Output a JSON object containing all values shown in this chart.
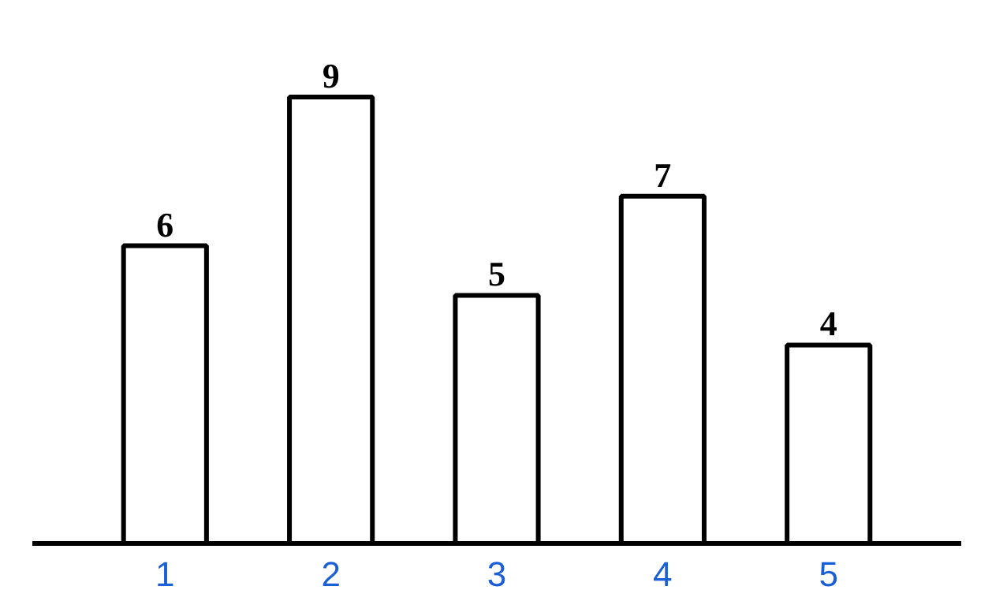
{
  "chart_data": {
    "type": "bar",
    "categories": [
      "1",
      "2",
      "3",
      "4",
      "5"
    ],
    "values": [
      6,
      9,
      5,
      7,
      4
    ],
    "color": "#ffffff",
    "data_labels": true
  }
}
